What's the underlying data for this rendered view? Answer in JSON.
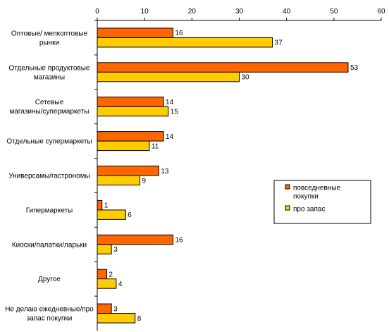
{
  "chart_data": {
    "type": "bar",
    "orientation": "horizontal",
    "categories": [
      [
        "Оптовые/ мелкоптовые",
        "рынки"
      ],
      [
        "Отдельные продуктовые",
        "магазины"
      ],
      [
        "Сетевые",
        "магазины/супермаркеты"
      ],
      [
        "Отдельные супермаркеты"
      ],
      [
        "Универсамы/гастрономы"
      ],
      [
        "Гипермаркеты"
      ],
      [
        "Киоски/палатки/ларьки"
      ],
      [
        "Другое"
      ],
      [
        "Не делаю ежедневные/про",
        "запас покупки"
      ]
    ],
    "series": [
      {
        "name": "повседневные покупки",
        "color": "#FF6600",
        "values": [
          16,
          53,
          14,
          14,
          13,
          1,
          16,
          2,
          3
        ]
      },
      {
        "name": "про запас",
        "color": "#FFCC00",
        "values": [
          37,
          30,
          15,
          11,
          9,
          6,
          3,
          4,
          8
        ]
      }
    ],
    "xlim": [
      0,
      60
    ],
    "xticks": [
      0,
      10,
      20,
      30,
      40,
      50,
      60
    ],
    "axis_position": "top",
    "grid": false,
    "legend_position": "right",
    "legend": [
      {
        "label_lines": [
          "повседневные",
          "покупки"
        ],
        "color": "#FF6600"
      },
      {
        "label_lines": [
          "про запас"
        ],
        "color": "#FFCC00"
      }
    ]
  }
}
